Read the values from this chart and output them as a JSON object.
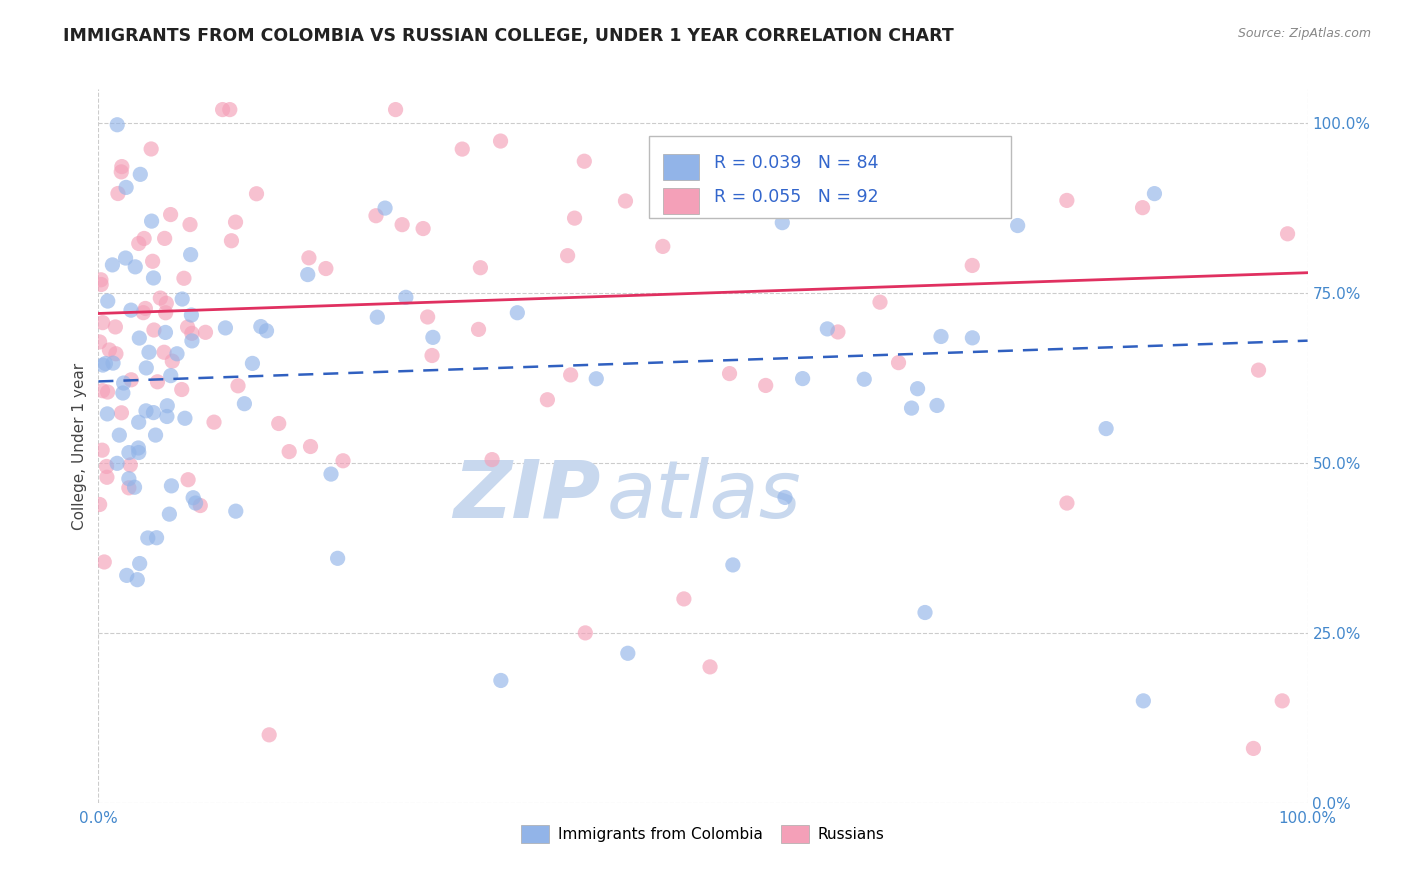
{
  "title": "IMMIGRANTS FROM COLOMBIA VS RUSSIAN COLLEGE, UNDER 1 YEAR CORRELATION CHART",
  "source_text": "Source: ZipAtlas.com",
  "ylabel": "College, Under 1 year",
  "xlim": [
    0.0,
    1.0
  ],
  "ylim": [
    0.0,
    1.05
  ],
  "xtick_labels": [
    "0.0%",
    "100.0%"
  ],
  "ytick_labels_right": [
    "0.0%",
    "25.0%",
    "50.0%",
    "75.0%",
    "100.0%"
  ],
  "ytick_positions_right": [
    0.0,
    0.25,
    0.5,
    0.75,
    1.0
  ],
  "legend_r1": "R = 0.039",
  "legend_n1": "N = 84",
  "legend_r2": "R = 0.055",
  "legend_n2": "N = 92",
  "blue_color": "#92B4E8",
  "pink_color": "#F4A0B8",
  "trend_blue_color": "#3060C0",
  "trend_pink_color": "#E03060",
  "grid_color": "#CCCCCC",
  "title_color": "#222222",
  "watermark_zip_color": "#C8D8EE",
  "watermark_atlas_color": "#C8D8EE",
  "label1": "Immigrants from Colombia",
  "label2": "Russians",
  "blue_trend_y0": 0.62,
  "blue_trend_y1": 0.68,
  "pink_trend_y0": 0.72,
  "pink_trend_y1": 0.78,
  "seed": 123
}
